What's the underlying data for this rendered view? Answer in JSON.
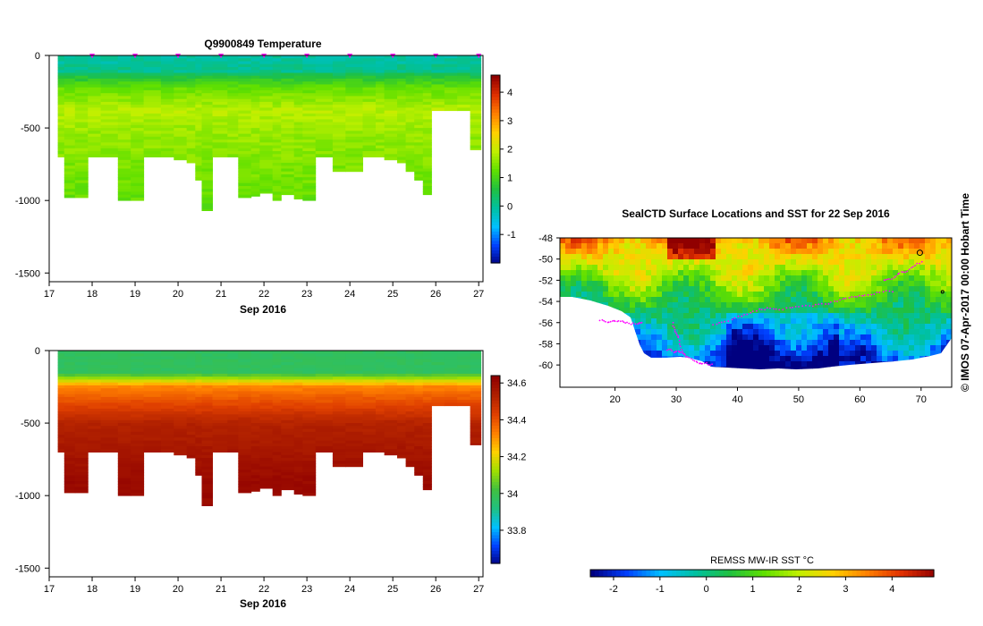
{
  "chart_data": [
    {
      "type": "heatmap",
      "title": "Q9900849  Temperature",
      "xlabel": "Sep 2016",
      "ylabel": "",
      "x_ticks": [
        "17",
        "18",
        "19",
        "20",
        "21",
        "22",
        "23",
        "24",
        "25",
        "26",
        "27"
      ],
      "xlim": [
        17,
        27.1
      ],
      "y_ticks": [
        "0",
        "-500",
        "-1000",
        "-1500"
      ],
      "ylim": [
        -1560,
        0
      ],
      "profiles": [
        {
          "day": 17.2,
          "depth": -700
        },
        {
          "day": 17.35,
          "depth": -980
        },
        {
          "day": 17.6,
          "depth": -980
        },
        {
          "day": 17.9,
          "depth": -700
        },
        {
          "day": 18.2,
          "depth": -700
        },
        {
          "day": 18.6,
          "depth": -1000
        },
        {
          "day": 18.9,
          "depth": -1000
        },
        {
          "day": 19.2,
          "depth": -700
        },
        {
          "day": 19.6,
          "depth": -700
        },
        {
          "day": 19.9,
          "depth": -720
        },
        {
          "day": 20.2,
          "depth": -740
        },
        {
          "day": 20.4,
          "depth": -860
        },
        {
          "day": 20.55,
          "depth": -1070
        },
        {
          "day": 20.8,
          "depth": -700
        },
        {
          "day": 21.15,
          "depth": -700
        },
        {
          "day": 21.4,
          "depth": -980
        },
        {
          "day": 21.7,
          "depth": -970
        },
        {
          "day": 21.9,
          "depth": -950
        },
        {
          "day": 22.2,
          "depth": -1000
        },
        {
          "day": 22.4,
          "depth": -960
        },
        {
          "day": 22.7,
          "depth": -990
        },
        {
          "day": 22.9,
          "depth": -1000
        },
        {
          "day": 23.2,
          "depth": -700
        },
        {
          "day": 23.6,
          "depth": -800
        },
        {
          "day": 23.9,
          "depth": -800
        },
        {
          "day": 24.3,
          "depth": -700
        },
        {
          "day": 24.6,
          "depth": -700
        },
        {
          "day": 24.8,
          "depth": -720
        },
        {
          "day": 25.1,
          "depth": -740
        },
        {
          "day": 25.3,
          "depth": -800
        },
        {
          "day": 25.5,
          "depth": -860
        },
        {
          "day": 25.7,
          "depth": -960
        },
        {
          "day": 25.9,
          "depth": -380
        },
        {
          "day": 26.2,
          "depth": -380
        },
        {
          "day": 26.5,
          "depth": -380
        },
        {
          "day": 26.8,
          "depth": -650
        }
      ],
      "markers": [
        18,
        19,
        20,
        21,
        22,
        23,
        24,
        25,
        26,
        27
      ],
      "colorbar": {
        "label": "",
        "ticks": [
          "4",
          "3",
          "2",
          "1",
          "0",
          "-1"
        ],
        "min": -2,
        "max": 4.6
      }
    },
    {
      "type": "heatmap",
      "title": "",
      "xlabel": "Sep 2016",
      "ylabel": "",
      "x_ticks": [
        "17",
        "18",
        "19",
        "20",
        "21",
        "22",
        "23",
        "24",
        "25",
        "26",
        "27"
      ],
      "xlim": [
        17,
        27.1
      ],
      "y_ticks": [
        "0",
        "-500",
        "-1000",
        "-1500"
      ],
      "ylim": [
        -1560,
        0
      ],
      "colorbar": {
        "label": "",
        "ticks": [
          "34.6",
          "34.4",
          "34.2",
          "34",
          "33.8"
        ],
        "min": 33.62,
        "max": 34.64
      }
    },
    {
      "type": "heatmap",
      "title": "SealCTD Surface Locations and SST for 22 Sep 2016",
      "x_ticks": [
        "20",
        "30",
        "40",
        "50",
        "60",
        "70"
      ],
      "xlim": [
        11,
        75
      ],
      "y_ticks": [
        "-48",
        "-50",
        "-52",
        "-54",
        "-56",
        "-58",
        "-60"
      ],
      "ylim": [
        -62.1,
        -48
      ],
      "colorbar": {
        "label": "REMSS MW-IR SST °C",
        "ticks": [
          "-2",
          "-1",
          "0",
          "1",
          "2",
          "3",
          "4"
        ],
        "min": -2.5,
        "max": 4.9
      }
    }
  ],
  "credit": "© IMOS 07-Apr-2017 00:00 Hobart Time",
  "colors": {
    "magenta": "#ff00ff",
    "temp_scale": [
      "#000080",
      "#0040ff",
      "#00c0ff",
      "#00c0a0",
      "#20c040",
      "#60e000",
      "#c0f000",
      "#ffd000",
      "#ff8000",
      "#e03000",
      "#900000"
    ],
    "sal_scale": [
      "#000080",
      "#0040ff",
      "#00c0ff",
      "#20c080",
      "#40c040",
      "#a0e000",
      "#ffd000",
      "#ff8000",
      "#e04000",
      "#b02000",
      "#900000"
    ]
  }
}
